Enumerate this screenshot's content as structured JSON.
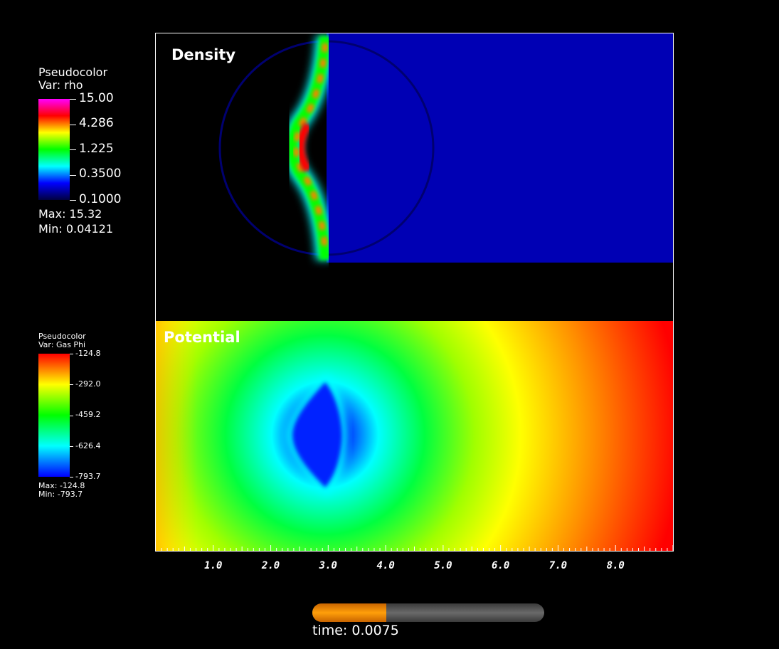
{
  "legends": {
    "density": {
      "plot_type": "Pseudocolor",
      "var_label": "Var: rho",
      "ticks": [
        "15.00",
        "4.286",
        "1.225",
        "0.3500",
        "0.1000"
      ],
      "max_label": "Max:  15.32",
      "min_label": "Min:  0.04121",
      "colors": [
        "#ff00ff",
        "#ff0000",
        "#ffff00",
        "#00ff00",
        "#00ffff",
        "#0000ff",
        "#000040"
      ]
    },
    "potential": {
      "plot_type": "Pseudocolor",
      "var_label": "Var: Gas Phi",
      "ticks": [
        "-124.8",
        "-292.0",
        "-459.2",
        "-626.4",
        "-793.7"
      ],
      "max_label": "Max: -124.8",
      "min_label": "Min: -793.7",
      "colors": [
        "#ff0000",
        "#ffff00",
        "#00ff00",
        "#00ffff",
        "#0000ff"
      ]
    }
  },
  "panels": {
    "density_label": "Density",
    "potential_label": "Potential"
  },
  "chart_data": {
    "type": "heatmap",
    "x_tick_labels": [
      "1.0",
      "2.0",
      "3.0",
      "4.0",
      "5.0",
      "6.0",
      "7.0",
      "8.0"
    ],
    "x_ticks": [
      1,
      2,
      3,
      4,
      5,
      6,
      7,
      8
    ],
    "xlim": [
      0,
      9
    ],
    "density": {
      "max": 15.32,
      "min": 0.04121,
      "scale": "log",
      "range": [
        0.1,
        15.0
      ]
    },
    "potential": {
      "max": -124.8,
      "min": -793.7,
      "scale": "linear",
      "range": [
        -793.7,
        -124.8
      ]
    }
  },
  "time": {
    "label": "time: 0.0075",
    "progress_fraction": 0.32
  }
}
